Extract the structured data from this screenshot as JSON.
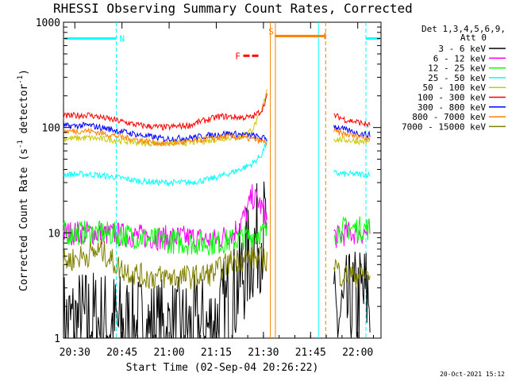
{
  "chart_data": {
    "type": "line",
    "title": "RHESSI Observing Summary Count Rates, Corrected",
    "xlabel": "Start Time (02-Sep-04 20:26:22)",
    "ylabel_main": "Corrected Count Rate (s",
    "ylabel_sup1": "-1",
    "ylabel_mid": " detector",
    "ylabel_sup2": "-1",
    "ylabel_end": ")",
    "x_unit": "minutes after 20:26:22 UT",
    "xlim": [
      0,
      101
    ],
    "ylim": [
      1,
      1000
    ],
    "y_scale": "log",
    "x_ticks": [
      {
        "t": 3.6,
        "label": "20:30"
      },
      {
        "t": 18.6,
        "label": "20:45"
      },
      {
        "t": 33.6,
        "label": "21:00"
      },
      {
        "t": 48.6,
        "label": "21:15"
      },
      {
        "t": 63.6,
        "label": "21:30"
      },
      {
        "t": 78.6,
        "label": "21:45"
      },
      {
        "t": 93.6,
        "label": "22:00"
      }
    ],
    "y_ticks": [
      {
        "v": 1,
        "label": "1"
      },
      {
        "v": 10,
        "label": "10"
      },
      {
        "v": 100,
        "label": "100"
      },
      {
        "v": 1000,
        "label": "1000"
      }
    ],
    "legend_header": [
      "Det 1,3,4,5,6,9,",
      "Att 0"
    ],
    "legend_placement": "right",
    "timestamp": "20-Oct-2021 15:12",
    "flags": [
      {
        "label": "N",
        "color": "#00ffff",
        "label_t": 17.8,
        "label_v": 700,
        "segments": [
          [
            0,
            16.8
          ],
          [
            96.2,
            101
          ]
        ],
        "level": 700
      },
      {
        "label": "S",
        "color": "#ff8000",
        "label_t": 65.2,
        "label_v": 820,
        "segments": [
          [
            67.2,
            83.2
          ]
        ],
        "level": 740
      },
      {
        "label": "F",
        "color": "#ff0000",
        "label_t": 54.6,
        "label_v": 480,
        "segments": [
          [
            57.2,
            62.4
          ]
        ],
        "level": 480
      }
    ],
    "vertical_lines": [
      {
        "t": 16.8,
        "color": "#00ffff",
        "dashed": true
      },
      {
        "t": 65.8,
        "color": "#ff8000",
        "dashed": false
      },
      {
        "t": 67.4,
        "color": "#ff8000",
        "dashed": false
      },
      {
        "t": 81.1,
        "color": "#00ffff",
        "dashed": false
      },
      {
        "t": 83.4,
        "color": "#ff8000",
        "dashed": true
      },
      {
        "t": 96.2,
        "color": "#00ffff",
        "dashed": true
      }
    ],
    "data_gap": [
      65.8,
      85.5
    ],
    "series": [
      {
        "name": "3 - 6 keV",
        "color": "#000000",
        "x": [
          0,
          8,
          16,
          22,
          30,
          38,
          46,
          50,
          54,
          58,
          61,
          63,
          64.5,
          85.8,
          88,
          92,
          96,
          97.5
        ],
        "y": [
          1.3,
          1.4,
          1.3,
          1.2,
          1.1,
          1.1,
          1.2,
          1.5,
          2.5,
          5,
          8,
          10,
          11,
          1.3,
          1.6,
          2,
          2.5,
          2.5
        ]
      },
      {
        "name": "6 - 12 keV",
        "color": "#ff00ff",
        "x": [
          0,
          10,
          20,
          30,
          40,
          48,
          54,
          58,
          60,
          62,
          64,
          64.8,
          85.8,
          87,
          90,
          94,
          97.5
        ],
        "y": [
          10,
          10,
          9.5,
          9,
          9,
          8.5,
          10,
          15,
          22,
          20,
          15,
          13,
          10,
          9,
          10,
          10,
          10
        ]
      },
      {
        "name": "12 - 25 keV",
        "color": "#00ff00",
        "x": [
          0,
          10,
          20,
          30,
          40,
          48,
          54,
          58,
          62,
          64.8,
          85.8,
          90,
          94,
          97.5
        ],
        "y": [
          10,
          10,
          9.5,
          8.5,
          8,
          8,
          8.5,
          9,
          10,
          10,
          10,
          11,
          11,
          11
        ]
      },
      {
        "name": "25 - 50 keV",
        "color": "#00ffff",
        "x": [
          0,
          8,
          16,
          24,
          32,
          40,
          46,
          52,
          56,
          60,
          63,
          64.8,
          85.8,
          90,
          94,
          97.5
        ],
        "y": [
          36,
          36,
          34,
          31,
          30,
          30,
          32,
          36,
          40,
          45,
          55,
          75,
          37,
          36,
          36,
          36
        ]
      },
      {
        "name": "50 - 100 keV",
        "color": "#c8c800",
        "x": [
          0,
          8,
          16,
          24,
          32,
          40,
          46,
          52,
          56,
          60,
          63,
          64.8,
          85.8,
          90,
          94,
          97.5
        ],
        "y": [
          78,
          80,
          76,
          72,
          70,
          72,
          75,
          80,
          82,
          95,
          140,
          240,
          78,
          76,
          74,
          73
        ]
      },
      {
        "name": "100 - 300 keV",
        "color": "#ff0000",
        "x": [
          0,
          8,
          16,
          24,
          32,
          40,
          44,
          50,
          56,
          60,
          63,
          64.8,
          85.8,
          90,
          94,
          97.5
        ],
        "y": [
          128,
          132,
          118,
          105,
          100,
          105,
          115,
          128,
          125,
          125,
          145,
          200,
          132,
          118,
          112,
          105
        ]
      },
      {
        "name": "300 - 800 keV",
        "color": "#0000ff",
        "x": [
          0,
          8,
          16,
          24,
          32,
          40,
          46,
          52,
          56,
          60,
          63,
          64.8,
          85.8,
          90,
          94,
          97.5
        ],
        "y": [
          103,
          105,
          95,
          85,
          78,
          80,
          84,
          88,
          86,
          84,
          80,
          78,
          104,
          94,
          88,
          85
        ]
      },
      {
        "name": "800 - 7000 keV",
        "color": "#ff8000",
        "x": [
          0,
          8,
          16,
          24,
          32,
          40,
          46,
          52,
          56,
          60,
          63,
          64.8,
          85.8,
          90,
          94,
          97.5
        ],
        "y": [
          92,
          93,
          84,
          76,
          70,
          73,
          78,
          82,
          80,
          78,
          74,
          72,
          92,
          86,
          82,
          80
        ]
      },
      {
        "name": "7000 - 15000 keV",
        "color": "#808000",
        "x": [
          0,
          6,
          12,
          18,
          26,
          34,
          42,
          48,
          54,
          60,
          64.8,
          85.8,
          88,
          92,
          97.5
        ],
        "y": [
          5.3,
          6,
          6.8,
          4.6,
          3.8,
          3.8,
          3.8,
          4.2,
          5.5,
          5.8,
          5.5,
          5.5,
          4,
          4,
          4
        ]
      }
    ]
  }
}
